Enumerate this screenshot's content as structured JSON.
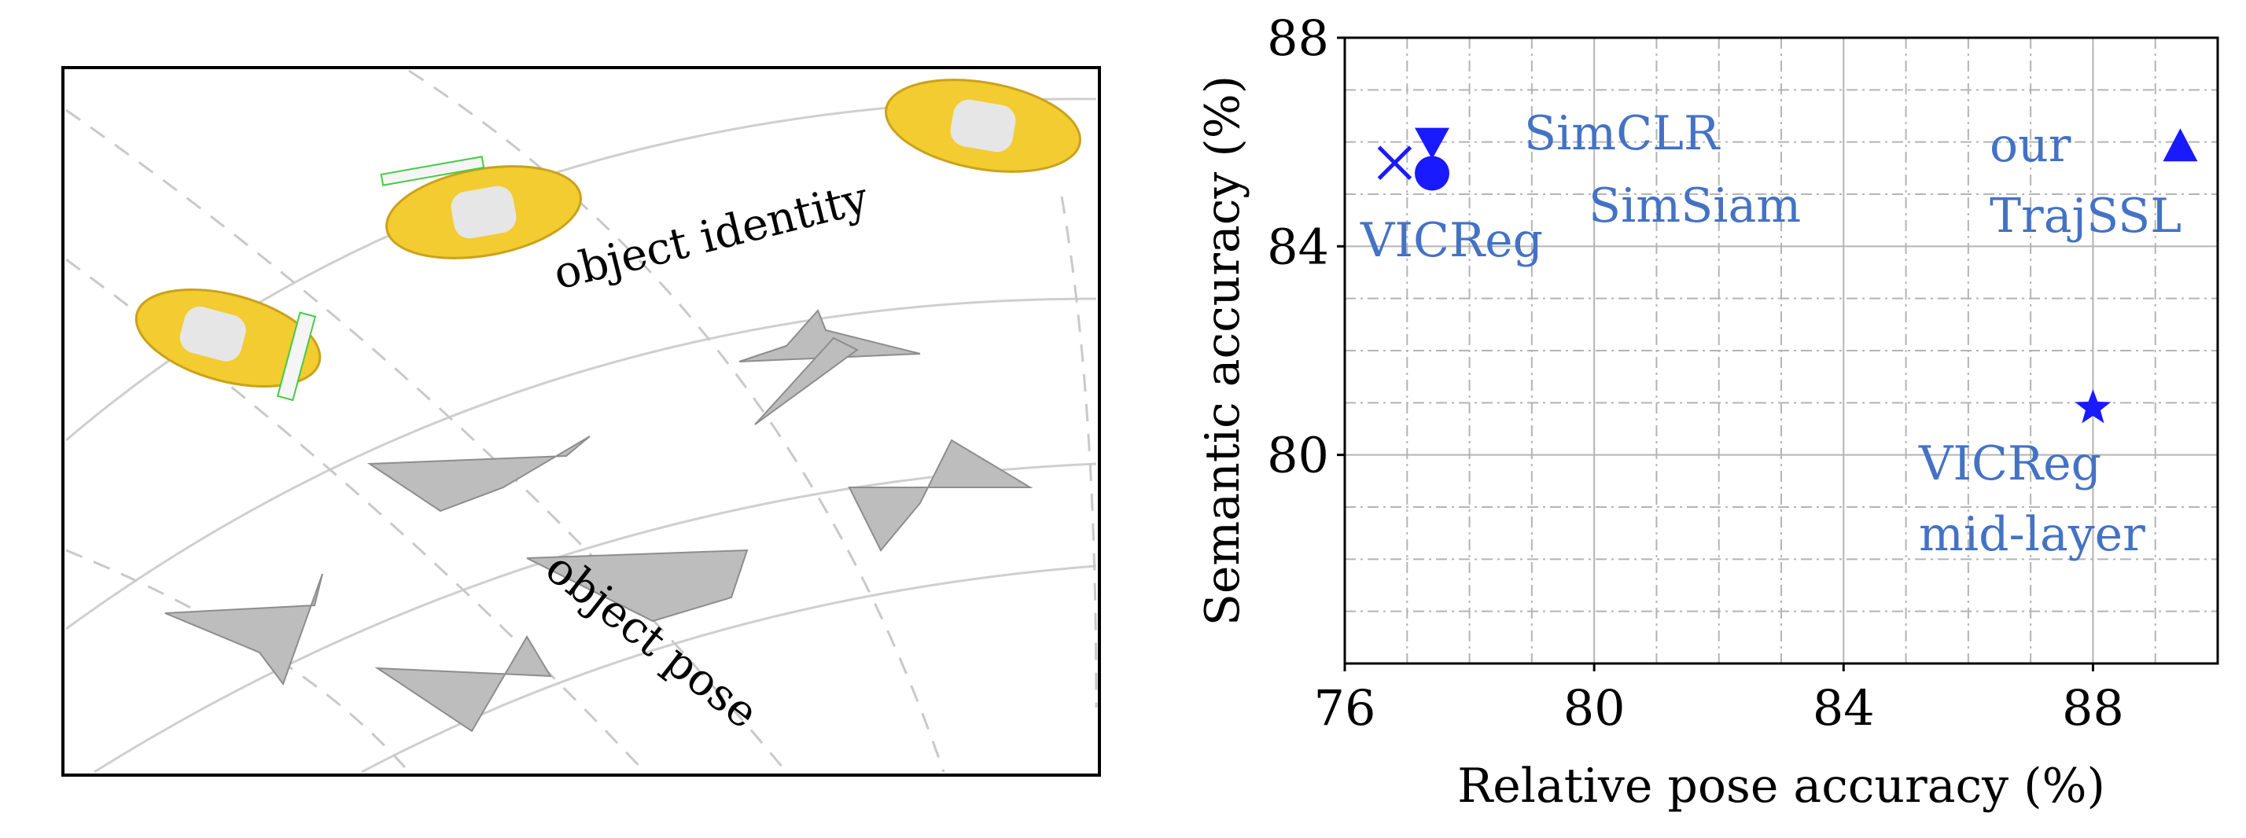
{
  "illustration": {
    "label_identity": "object identity",
    "label_pose": "object pose"
  },
  "chart_data": {
    "type": "scatter",
    "xlabel": "Relative pose accuracy (%)",
    "ylabel": "Semantic accuracy (%)",
    "xlim": [
      76,
      90
    ],
    "ylim": [
      76,
      88
    ],
    "xticks": [
      76,
      80,
      84,
      88
    ],
    "yticks": [
      80,
      84,
      88
    ],
    "grid": true,
    "points": [
      {
        "name": "VICReg",
        "marker": "x",
        "x": 76.8,
        "y": 85.6,
        "label_lines": [
          "VICReg"
        ]
      },
      {
        "name": "SimCLR",
        "marker": "triangle-down",
        "x": 77.4,
        "y": 86.0,
        "label_lines": [
          "SimCLR"
        ]
      },
      {
        "name": "SimSiam",
        "marker": "circle",
        "x": 77.4,
        "y": 85.4,
        "label_lines": [
          "SimSiam"
        ]
      },
      {
        "name": "our TrajSSL",
        "marker": "triangle-up",
        "x": 89.4,
        "y": 85.9,
        "label_lines": [
          "our",
          "TrajSSL"
        ]
      },
      {
        "name": "VICReg mid-layer",
        "marker": "star",
        "x": 88.0,
        "y": 80.9,
        "label_lines": [
          "VICReg",
          "mid-layer"
        ]
      }
    ],
    "marker_color": "#1a1aff",
    "label_color": "#4472c4"
  }
}
